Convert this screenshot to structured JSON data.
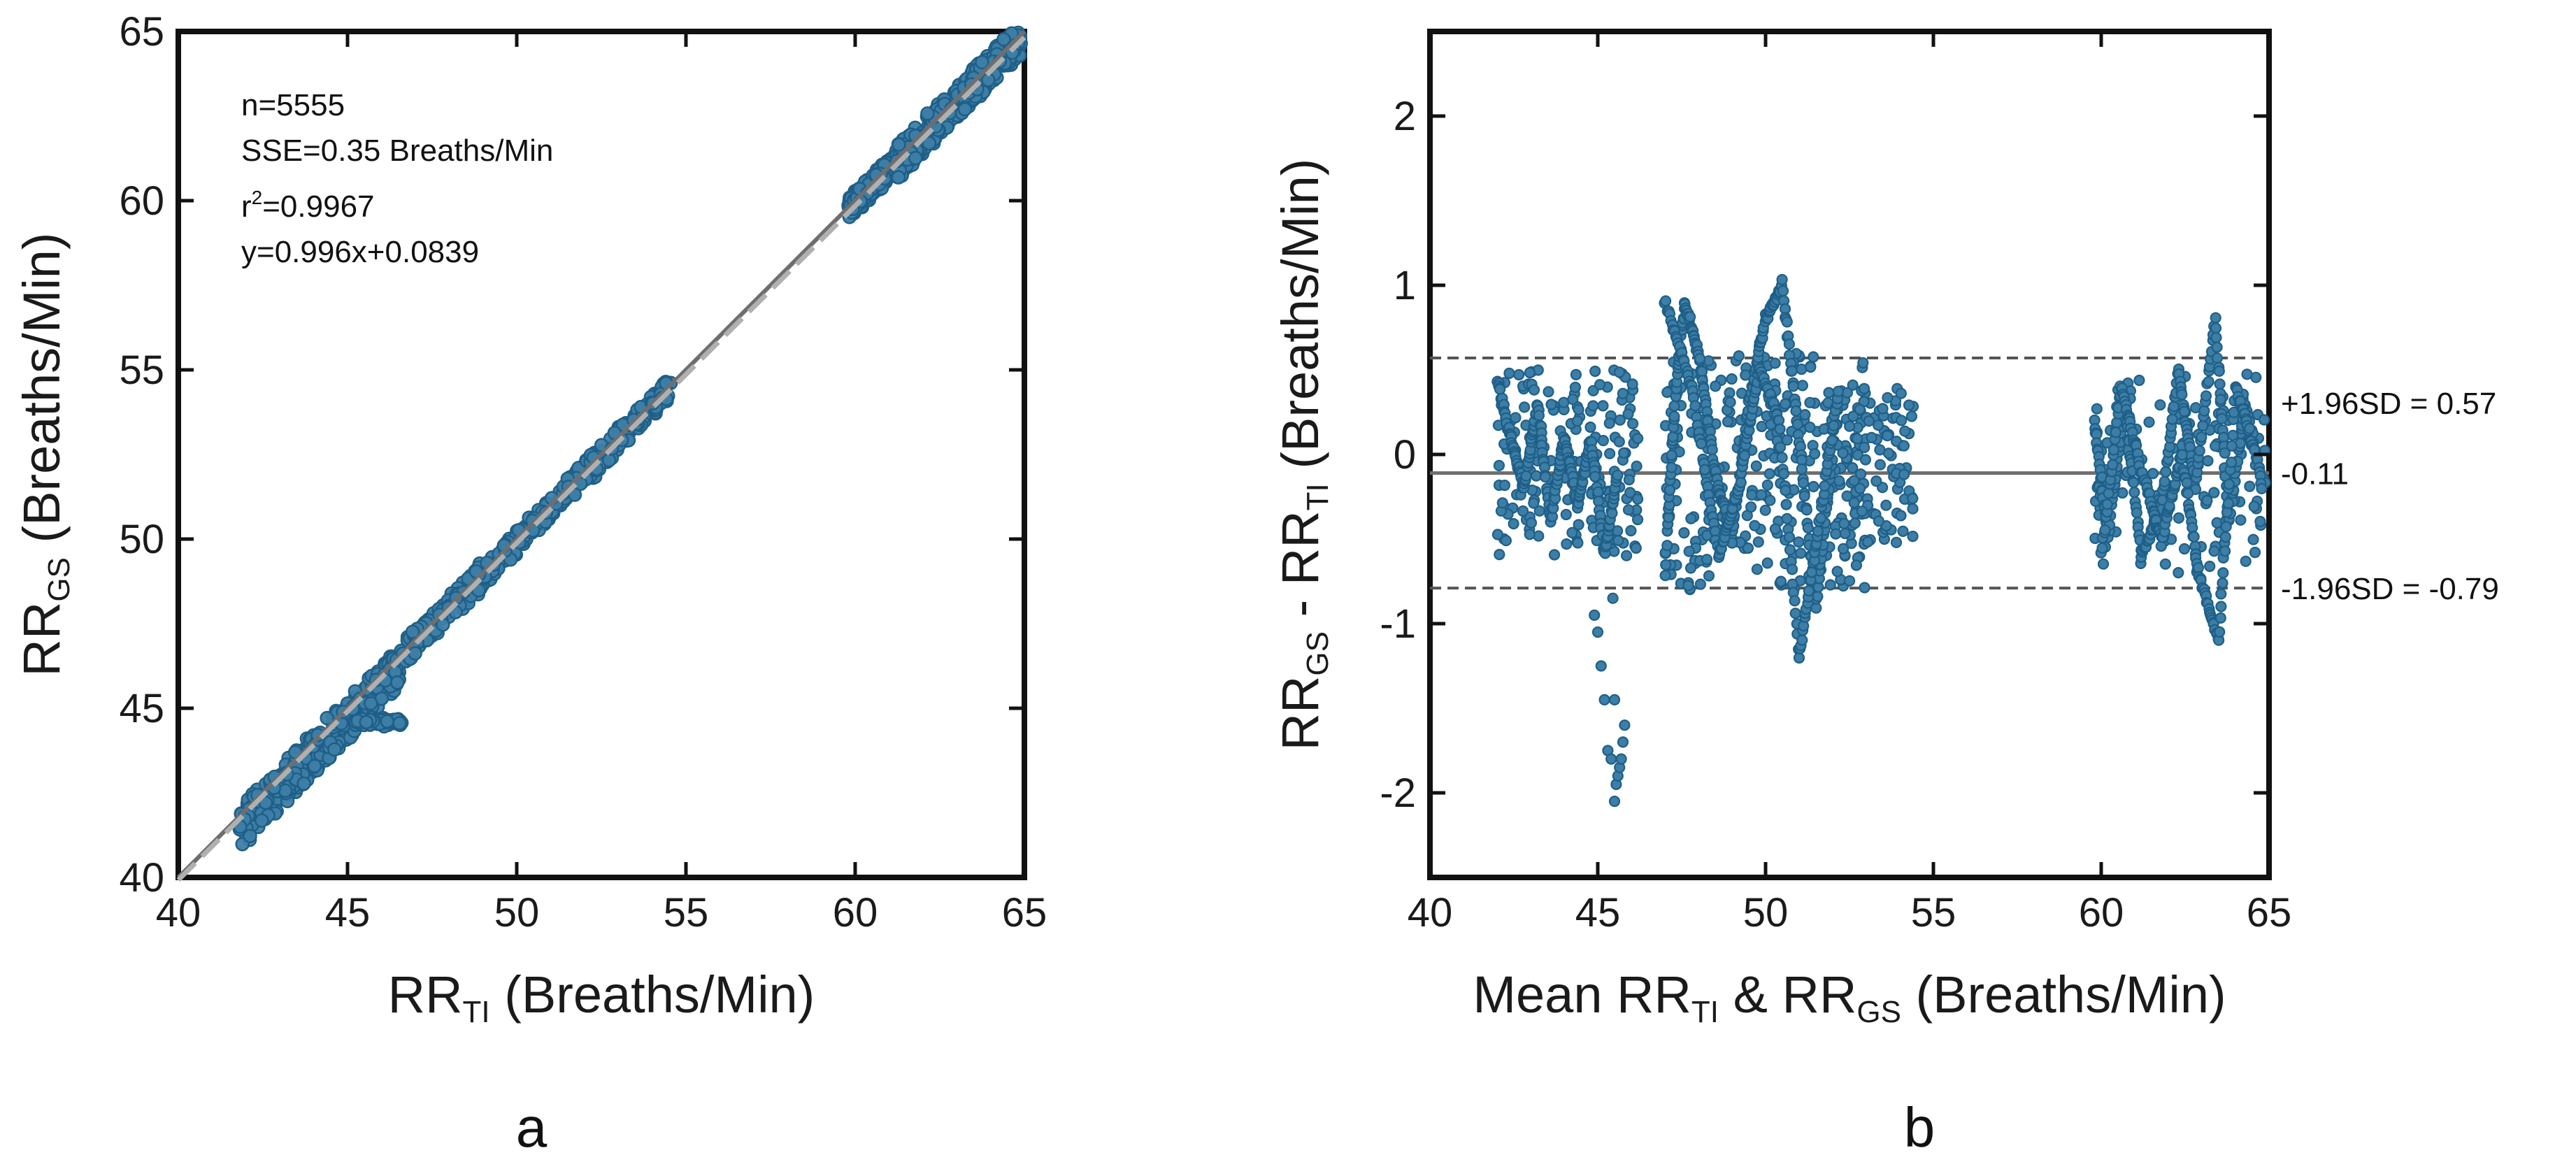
{
  "chart_data": [
    {
      "type": "scatter",
      "panel_label": "a",
      "xlabel": {
        "main": "RR",
        "sub": "TI",
        "rest": " (Breaths/Min)"
      },
      "ylabel": {
        "main": "RR",
        "sub": "GS",
        "rest": " (Breaths/Min)"
      },
      "xlim": [
        40,
        65
      ],
      "ylim": [
        40,
        65
      ],
      "xticks": [
        "40",
        "45",
        "50",
        "55",
        "60",
        "65"
      ],
      "yticks": [
        "40",
        "45",
        "50",
        "55",
        "60",
        "65"
      ],
      "annotations": {
        "n": "n=5555",
        "sse": "SSE=0.35 Breaths/Min",
        "r2_prefix": "r",
        "r2_sup": "2",
        "r2_value": "=0.9967",
        "fit": "y=0.996x+0.0839"
      },
      "identity_line": {
        "from": [
          40,
          40
        ],
        "to": [
          65,
          65
        ],
        "color": "#6e6e6e",
        "style": "solid"
      },
      "fit_line": {
        "slope": 0.996,
        "intercept": 0.0839,
        "color": "#b0b0b0",
        "style": "dashed"
      },
      "point_color": "#3d7ea6",
      "point_edge": "#1f5f87",
      "clusters": [
        {
          "x_range": [
            41.8,
            46.6
          ],
          "offset_range": [
            -1.9,
            0.5
          ]
        },
        {
          "x_range": [
            46.6,
            54.6
          ],
          "offset_range": [
            -0.8,
            0.6
          ]
        },
        {
          "x_range": [
            59.8,
            61.2
          ],
          "offset_range": [
            -0.6,
            0.4
          ]
        },
        {
          "x_range": [
            61.2,
            64.9
          ],
          "offset_range": [
            -1.2,
            0.8
          ]
        }
      ]
    },
    {
      "type": "scatter",
      "panel_label": "b",
      "xlabel": {
        "main": "Mean RR",
        "sub1": "TI",
        "mid": " & RR",
        "sub2": "GS",
        "rest": " (Breaths/Min)"
      },
      "ylabel": {
        "main": "RR",
        "sub1": "GS",
        "mid": " - RR",
        "sub2": "TI",
        "rest": " (Breaths/Min)"
      },
      "xlim": [
        40,
        65
      ],
      "ylim": [
        -2.5,
        2.5
      ],
      "xticks": [
        "40",
        "45",
        "50",
        "55",
        "60",
        "65"
      ],
      "yticks": [
        "-2",
        "-1",
        "0",
        "1",
        "2"
      ],
      "mean_line": {
        "value": -0.11,
        "label": "-0.11",
        "color": "#6e6e6e",
        "style": "solid"
      },
      "upper_loa": {
        "value": 0.57,
        "label": "+1.96SD = 0.57",
        "color": "#555555",
        "style": "dashed"
      },
      "lower_loa": {
        "value": -0.79,
        "label": "-1.96SD = -0.79",
        "color": "#555555",
        "style": "dashed"
      },
      "point_color": "#3d7ea6",
      "point_edge": "#1f5f87",
      "trend_traces": [
        [
          [
            42.0,
            0.45
          ],
          [
            42.4,
            0.1
          ],
          [
            42.8,
            -0.2
          ],
          [
            43.2,
            0.3
          ],
          [
            43.6,
            -0.4
          ],
          [
            44.0,
            0.1
          ],
          [
            44.4,
            -0.3
          ],
          [
            44.8,
            0.1
          ],
          [
            45.2,
            -0.6
          ],
          [
            45.6,
            -0.1
          ]
        ],
        [
          [
            47.0,
            -0.7
          ],
          [
            47.3,
            0.3
          ],
          [
            47.6,
            0.9
          ],
          [
            48.0,
            0.6
          ],
          [
            48.5,
            -0.1
          ],
          [
            49.0,
            -0.5
          ],
          [
            49.5,
            0.3
          ],
          [
            50.0,
            0.8
          ],
          [
            50.5,
            1.0
          ],
          [
            51.0,
            0.1
          ],
          [
            51.5,
            -0.9
          ],
          [
            52.0,
            0.0
          ]
        ],
        [
          [
            47.0,
            0.9
          ],
          [
            47.8,
            0.4
          ],
          [
            48.6,
            -0.6
          ],
          [
            49.2,
            -0.2
          ],
          [
            49.8,
            0.5
          ],
          [
            50.4,
            0.2
          ],
          [
            51.0,
            -1.2
          ],
          [
            51.6,
            -0.4
          ],
          [
            52.2,
            0.4
          ]
        ],
        [
          [
            59.8,
            0.2
          ],
          [
            60.2,
            -0.5
          ],
          [
            60.7,
            0.3
          ],
          [
            61.2,
            -0.6
          ],
          [
            61.8,
            -0.3
          ],
          [
            62.3,
            0.5
          ],
          [
            62.8,
            -0.2
          ],
          [
            63.4,
            0.8
          ],
          [
            63.8,
            -0.4
          ],
          [
            64.3,
            0.3
          ],
          [
            64.8,
            -0.2
          ]
        ],
        [
          [
            60.0,
            -0.6
          ],
          [
            60.6,
            0.4
          ],
          [
            61.2,
            -0.1
          ],
          [
            61.8,
            -0.5
          ],
          [
            62.4,
            0.0
          ],
          [
            62.9,
            -0.7
          ],
          [
            63.5,
            -1.1
          ],
          [
            64.0,
            0.4
          ],
          [
            64.6,
            0.0
          ]
        ]
      ],
      "scatter_bands": [
        {
          "x_range": [
            42.0,
            46.2
          ],
          "y_range": [
            -0.6,
            0.5
          ],
          "count": 170
        },
        {
          "x_range": [
            47.0,
            53.0
          ],
          "y_range": [
            -0.8,
            0.6
          ],
          "count": 260
        },
        {
          "x_range": [
            52.0,
            54.4
          ],
          "y_range": [
            -0.55,
            0.4
          ],
          "count": 120
        },
        {
          "x_range": [
            59.8,
            64.9
          ],
          "y_range": [
            -0.7,
            0.5
          ],
          "count": 130
        }
      ],
      "outlier_points": [
        [
          44.9,
          -0.95
        ],
        [
          45.0,
          -1.05
        ],
        [
          45.1,
          -1.25
        ],
        [
          45.2,
          -1.45
        ],
        [
          45.3,
          -1.75
        ],
        [
          45.4,
          -1.8
        ],
        [
          45.45,
          -0.85
        ],
        [
          45.5,
          -2.05
        ],
        [
          45.55,
          -1.95
        ],
        [
          45.6,
          -1.9
        ],
        [
          45.65,
          -1.85
        ],
        [
          45.7,
          -1.8
        ],
        [
          45.75,
          -1.7
        ],
        [
          45.8,
          -1.6
        ],
        [
          45.5,
          -1.45
        ]
      ]
    }
  ]
}
